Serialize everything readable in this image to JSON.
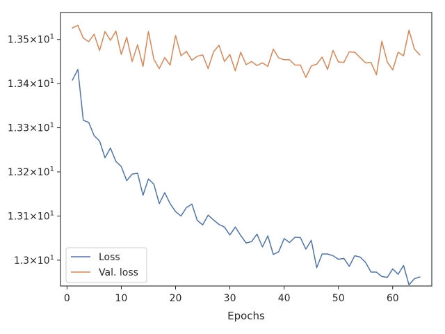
{
  "chart_data": {
    "type": "line",
    "title": "",
    "xlabel": "Epochs",
    "ylabel": "",
    "xlim": [
      -1.2,
      67.2
    ],
    "ylim": [
      12.9415,
      13.561
    ],
    "x_ticks": [
      {
        "value": 0,
        "label": "0"
      },
      {
        "value": 10,
        "label": "10"
      },
      {
        "value": 20,
        "label": "20"
      },
      {
        "value": 30,
        "label": "30"
      },
      {
        "value": 40,
        "label": "40"
      },
      {
        "value": 50,
        "label": "50"
      },
      {
        "value": 60,
        "label": "60"
      }
    ],
    "y_ticks": [
      {
        "value": 13.0,
        "base": "1.3",
        "exp": "1"
      },
      {
        "value": 13.1,
        "base": "1.31",
        "exp": "1"
      },
      {
        "value": 13.2,
        "base": "1.32",
        "exp": "1"
      },
      {
        "value": 13.3,
        "base": "1.33",
        "exp": "1"
      },
      {
        "value": 13.4,
        "base": "1.34",
        "exp": "1"
      },
      {
        "value": 13.5,
        "base": "1.35",
        "exp": "1"
      }
    ],
    "grid": false,
    "legend_position": "lower-left",
    "series": [
      {
        "name": "Loss",
        "color": "#4c72b0",
        "x": [
          1,
          2,
          3,
          4,
          5,
          6,
          7,
          8,
          9,
          10,
          11,
          12,
          13,
          14,
          15,
          16,
          17,
          18,
          19,
          20,
          21,
          22,
          23,
          24,
          25,
          26,
          27,
          28,
          29,
          30,
          31,
          32,
          33,
          34,
          35,
          36,
          37,
          38,
          39,
          40,
          41,
          42,
          43,
          44,
          45,
          46,
          47,
          48,
          49,
          50,
          51,
          52,
          53,
          54,
          55,
          56,
          57,
          58,
          59,
          60,
          61,
          62,
          63,
          64,
          65
        ],
        "values": [
          13.408,
          13.432,
          13.317,
          13.312,
          13.282,
          13.27,
          13.232,
          13.254,
          13.224,
          13.212,
          13.18,
          13.195,
          13.197,
          13.147,
          13.184,
          13.172,
          13.128,
          13.153,
          13.128,
          13.11,
          13.1,
          13.119,
          13.127,
          13.09,
          13.08,
          13.102,
          13.091,
          13.081,
          13.075,
          13.057,
          13.075,
          13.056,
          13.039,
          13.042,
          13.059,
          13.03,
          13.055,
          13.013,
          13.019,
          13.049,
          13.04,
          13.052,
          13.051,
          13.025,
          13.045,
          12.983,
          13.014,
          13.014,
          13.01,
          13.002,
          13.004,
          12.986,
          13.01,
          13.007,
          12.995,
          12.973,
          12.973,
          12.963,
          12.961,
          12.98,
          12.968,
          12.988,
          12.944,
          12.958,
          12.962
        ]
      },
      {
        "name": "Val. loss",
        "color": "#dd8452",
        "x": [
          1,
          2,
          3,
          4,
          5,
          6,
          7,
          8,
          9,
          10,
          11,
          12,
          13,
          14,
          15,
          16,
          17,
          18,
          19,
          20,
          21,
          22,
          23,
          24,
          25,
          26,
          27,
          28,
          29,
          30,
          31,
          32,
          33,
          34,
          35,
          36,
          37,
          38,
          39,
          40,
          41,
          42,
          43,
          44,
          45,
          46,
          47,
          48,
          49,
          50,
          51,
          52,
          53,
          54,
          55,
          56,
          57,
          58,
          59,
          60,
          61,
          62,
          63,
          64,
          65
        ],
        "values": [
          13.526,
          13.532,
          13.503,
          13.495,
          13.512,
          13.475,
          13.518,
          13.498,
          13.519,
          13.466,
          13.505,
          13.45,
          13.488,
          13.439,
          13.518,
          13.455,
          13.434,
          13.459,
          13.442,
          13.509,
          13.463,
          13.473,
          13.453,
          13.462,
          13.465,
          13.434,
          13.472,
          13.487,
          13.45,
          13.466,
          13.429,
          13.471,
          13.443,
          13.45,
          13.441,
          13.447,
          13.439,
          13.478,
          13.458,
          13.454,
          13.454,
          13.442,
          13.442,
          13.414,
          13.44,
          13.444,
          13.46,
          13.432,
          13.475,
          13.449,
          13.448,
          13.472,
          13.471,
          13.459,
          13.447,
          13.448,
          13.42,
          13.496,
          13.449,
          13.431,
          13.471,
          13.463,
          13.521,
          13.478,
          13.465
        ]
      }
    ]
  }
}
